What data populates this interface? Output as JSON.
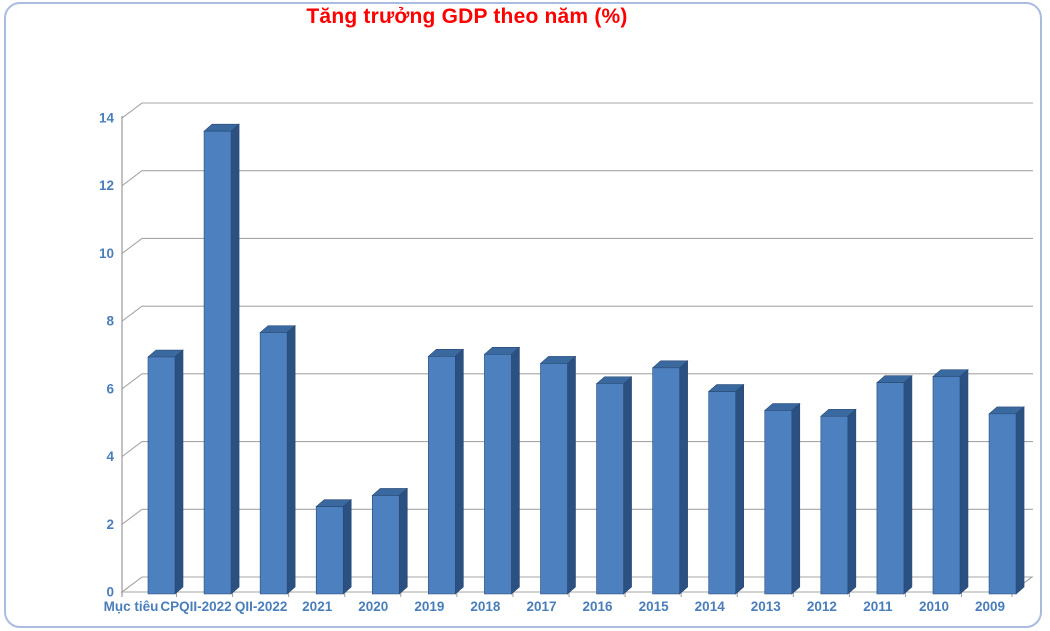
{
  "chart_data": {
    "type": "bar",
    "title": "Tăng trưởng GDP theo năm (%)",
    "categories": [
      "Mục tiêu",
      "CPQII-2022",
      "QII-2022",
      "2021",
      "2020",
      "2019",
      "2018",
      "2017",
      "2016",
      "2015",
      "2014",
      "2013",
      "2012",
      "2011",
      "2010",
      "2009"
    ],
    "values": [
      7.0,
      13.67,
      7.72,
      2.58,
      2.91,
      7.02,
      7.08,
      6.81,
      6.21,
      6.68,
      5.98,
      5.42,
      5.25,
      6.24,
      6.42,
      5.32
    ],
    "xlabel": "",
    "ylabel": "",
    "ylim": [
      0,
      14
    ],
    "yticks": [
      0,
      2,
      4,
      6,
      8,
      10,
      12,
      14
    ],
    "grid": true,
    "style_3d": true,
    "legend_position": "none",
    "colors": {
      "bar_front": "#4C80BE",
      "bar_side": "#2B5183",
      "bar_top": "#3A69A0",
      "bar_edge": "#2A4A74",
      "gridline": "#A6A6A6",
      "axis_line": "#9A9A9A",
      "axis_labels": "#4A7EBB",
      "title": "#FF0000",
      "frame_border": "#A9BCE0"
    }
  }
}
